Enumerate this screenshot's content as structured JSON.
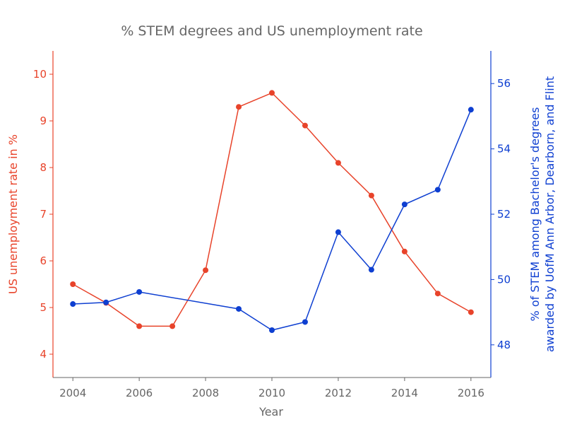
{
  "chart_data": {
    "type": "line",
    "title": "% STEM degrees and US unemployment rate",
    "xlabel": "Year",
    "x": [
      2004,
      2005,
      2006,
      2007,
      2008,
      2009,
      2010,
      2011,
      2012,
      2013,
      2014,
      2015,
      2016
    ],
    "xlim": [
      2003.4,
      2016.6
    ],
    "xticks": [
      2004,
      2006,
      2008,
      2010,
      2012,
      2014,
      2016
    ],
    "grid": false,
    "legend": "none",
    "axis_text_color": "#666666",
    "series": [
      {
        "axis": "left",
        "color": "#e8432a",
        "values": [
          5.5,
          5.1,
          4.6,
          4.6,
          5.8,
          9.3,
          9.6,
          8.9,
          8.1,
          7.4,
          6.2,
          5.3,
          4.9
        ]
      },
      {
        "axis": "right",
        "color": "#0e3fd1",
        "x": [
          2004,
          2005,
          2006,
          2009,
          2010,
          2011,
          2012,
          2013,
          2014,
          2015,
          2016
        ],
        "values": [
          49.25,
          49.3,
          49.62,
          49.1,
          48.45,
          48.7,
          51.45,
          50.3,
          52.3,
          52.75,
          55.2
        ]
      }
    ],
    "y_left": {
      "label": "US unemployment rate in %",
      "color": "#e8432a",
      "ylim": [
        3.5,
        10.5
      ],
      "ticks": [
        4,
        5,
        6,
        7,
        8,
        9,
        10
      ]
    },
    "y_right": {
      "label_line1": "% of STEM among Bachelor's degrees",
      "label_line2": "awarded by UofM Ann Arbor, Dearborn, and Flint",
      "color": "#0e3fd1",
      "ylim": [
        47,
        57
      ],
      "ticks": [
        48,
        50,
        52,
        54,
        56
      ]
    }
  }
}
